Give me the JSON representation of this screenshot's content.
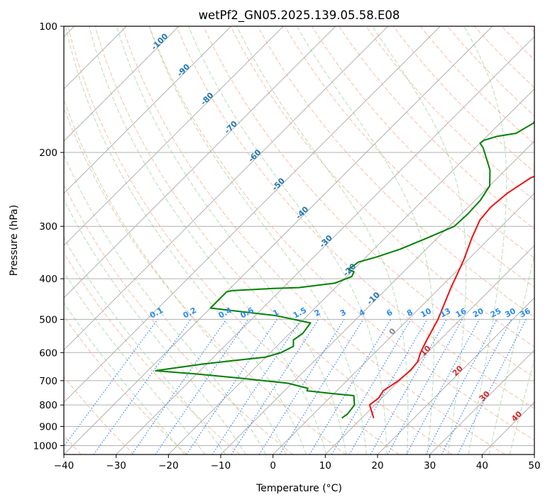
{
  "chart_data": {
    "type": "line",
    "title": "wetPf2_GN05.2025.139.05.58.E08",
    "xlabel": "Temperature (°C)",
    "ylabel": "Pressure (hPa)",
    "xlim": [
      -40,
      50
    ],
    "ylim": [
      1050,
      100
    ],
    "y_scale": "log",
    "grid": true,
    "x_ticks": [
      -40,
      -30,
      -20,
      -10,
      0,
      10,
      20,
      30,
      40,
      50
    ],
    "y_ticks": [
      100,
      200,
      300,
      400,
      500,
      600,
      700,
      800,
      900,
      1000
    ],
    "skew": true,
    "series": [
      {
        "color": "#ee1111",
        "points": [
          [
            12.3,
            860
          ],
          [
            9,
            800
          ],
          [
            9.4,
            770
          ],
          [
            8.9,
            740
          ],
          [
            9.9,
            700
          ],
          [
            10.2,
            660
          ],
          [
            9.9,
            630
          ],
          [
            8.7,
            600
          ],
          [
            7.5,
            560
          ],
          [
            5.7,
            500
          ],
          [
            2.1,
            420
          ],
          [
            1.2,
            400
          ],
          [
            -0.8,
            360
          ],
          [
            -3.4,
            320
          ],
          [
            -5.3,
            290
          ],
          [
            -5.7,
            270
          ],
          [
            -5.2,
            250
          ],
          [
            -3.7,
            230
          ],
          [
            -1.6,
            220
          ],
          [
            0,
            210
          ],
          [
            2,
            200
          ],
          [
            5.5,
            185
          ],
          [
            9,
            170
          ],
          [
            11.5,
            160
          ],
          [
            14,
            150
          ],
          [
            18,
            140
          ],
          [
            21,
            130
          ],
          [
            24.6,
            120
          ],
          [
            26.6,
            112
          ],
          [
            28.2,
            108
          ],
          [
            29.8,
            100
          ]
        ]
      },
      {
        "color": "#008000",
        "points": [
          [
            6.2,
            860
          ],
          [
            6.5,
            840
          ],
          [
            6.1,
            800
          ],
          [
            4.2,
            760
          ],
          [
            -1,
            750
          ],
          [
            -5.7,
            740
          ],
          [
            -6,
            730
          ],
          [
            -10.8,
            710
          ],
          [
            -21,
            690
          ],
          [
            -30,
            675
          ],
          [
            -38.5,
            663
          ],
          [
            -36,
            655
          ],
          [
            -31,
            640
          ],
          [
            -26,
            628
          ],
          [
            -20,
            615
          ],
          [
            -18,
            600
          ],
          [
            -16.8,
            580
          ],
          [
            -18,
            560
          ],
          [
            -17.5,
            540
          ],
          [
            -18,
            510
          ],
          [
            -26,
            490
          ],
          [
            -40,
            470
          ],
          [
            -40,
            430
          ],
          [
            -39.2,
            427
          ],
          [
            -32,
            422
          ],
          [
            -27,
            420
          ],
          [
            -21,
            410
          ],
          [
            -19,
            395
          ],
          [
            -19.5,
            385
          ],
          [
            -21,
            380
          ],
          [
            -20.5,
            365
          ],
          [
            -18,
            355
          ],
          [
            -15,
            340
          ],
          [
            -12,
            320
          ],
          [
            -9,
            300
          ],
          [
            -8.8,
            280
          ],
          [
            -9,
            260
          ],
          [
            -10,
            240
          ],
          [
            -13,
            220
          ],
          [
            -18.5,
            195
          ],
          [
            -20,
            190
          ],
          [
            -19.8,
            187
          ],
          [
            -18,
            183
          ],
          [
            -15,
            180
          ],
          [
            -13.6,
            170
          ],
          [
            -14.2,
            165
          ],
          [
            -14.8,
            160
          ],
          [
            -14.5,
            155
          ],
          [
            -12,
            150
          ],
          [
            -8.5,
            140
          ],
          [
            -7.2,
            130
          ],
          [
            -6.5,
            120
          ],
          [
            -3.7,
            110
          ],
          [
            -0.5,
            103
          ],
          [
            1,
            100
          ]
        ]
      }
    ],
    "dry_adiabat_labels": [
      "-100",
      "-90",
      "-80",
      "-70",
      "-60",
      "-50",
      "-40",
      "-30",
      "-20",
      "-10",
      "0",
      "10",
      "20",
      "30",
      "40"
    ],
    "mixing_ratio_labels": [
      "0.1",
      "0.2",
      "0.4",
      "0.6",
      "1",
      "1.5",
      "2",
      "3",
      "4",
      "6",
      "8",
      "10",
      "13",
      "16",
      "20",
      "25",
      "30",
      "36"
    ]
  },
  "colors": {
    "temperature": "#ee1111",
    "dewpoint": "#008000",
    "dry_adiabat": "#f4a582",
    "moist_adiabat": "#8fca8f",
    "mixing_ratio": "#1f77ff",
    "isotherm": "#888888",
    "label_blue": "#1f77b4",
    "label_red": "#d62728"
  }
}
